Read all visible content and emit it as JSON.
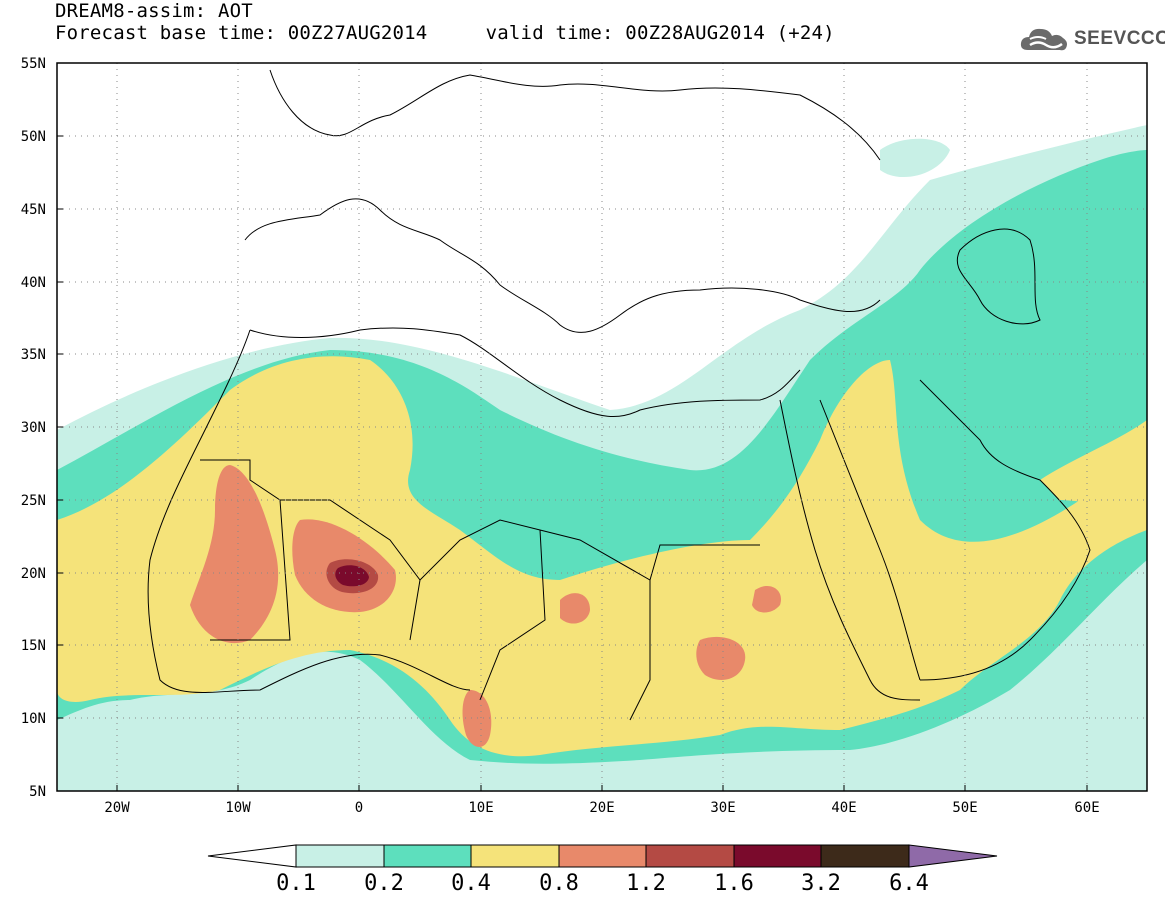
{
  "header": {
    "line1": "DREAM8-assim: AOT",
    "line2": "Forecast base time: 00Z27AUG2014     valid time: 00Z28AUG2014 (+24)",
    "logo_text": "SEEVCCC",
    "logo_icon": "cloud-icon"
  },
  "map": {
    "lon_range": [
      -25,
      65
    ],
    "lat_range": [
      5,
      55
    ],
    "lat_labels": [
      "55N",
      "50N",
      "45N",
      "40N",
      "35N",
      "30N",
      "25N",
      "20N",
      "15N",
      "10N",
      "5N"
    ],
    "lon_labels": [
      "20W",
      "10W",
      "0",
      "10E",
      "20E",
      "30E",
      "40E",
      "50E",
      "60E"
    ],
    "grid": "dotted"
  },
  "colorbar": {
    "labels": [
      "0.1",
      "0.2",
      "0.4",
      "0.8",
      "1.2",
      "1.6",
      "3.2",
      "6.4"
    ],
    "colors": [
      "#ffffff",
      "#c8f0e6",
      "#5ddfbd",
      "#f5e37a",
      "#e8896a",
      "#b44a44",
      "#7a0a2c",
      "#3d2a1a",
      "#8f6aa8"
    ]
  }
}
